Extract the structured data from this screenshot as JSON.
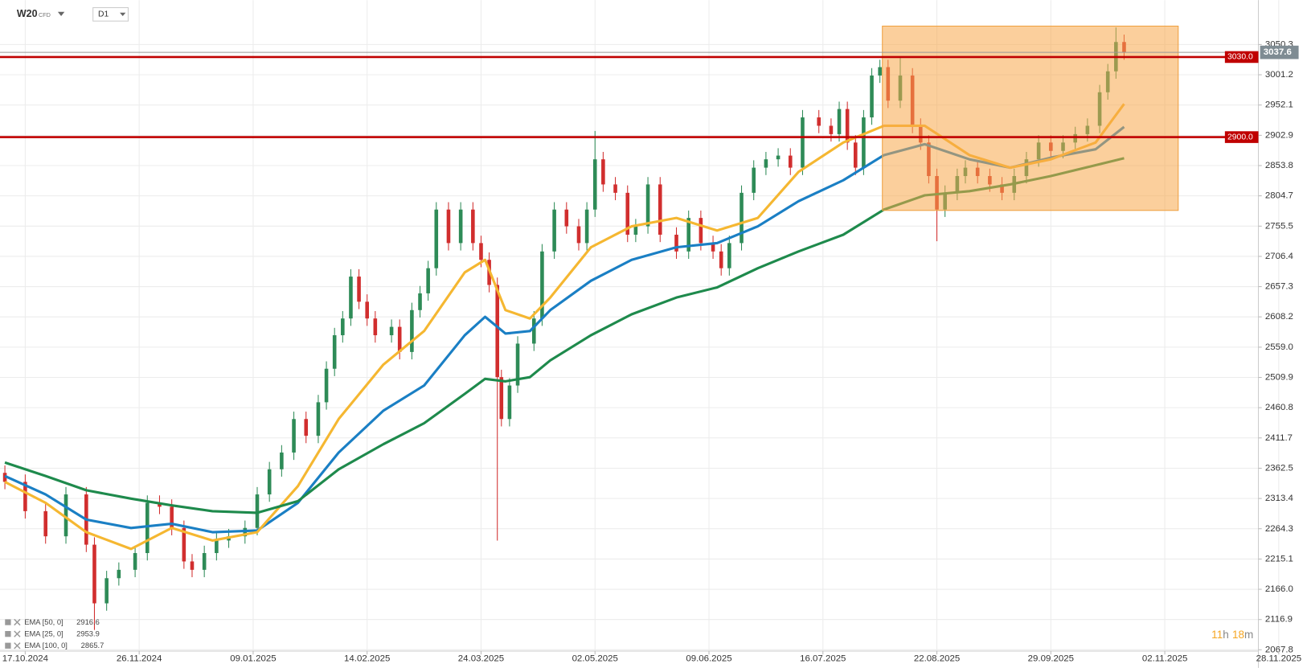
{
  "chart_data": {
    "type": "candlestick",
    "symbol": "W20",
    "instrument": "CFD",
    "interval": "D1",
    "countdown": [
      "11",
      "h",
      "18",
      "m"
    ],
    "up_color": "#2e8b57",
    "down_color": "#d12e2e",
    "grid": true,
    "xlim": [
      -6.2,
      303
    ],
    "ylim": [
      2065.6,
      3122.4
    ],
    "xticks": [
      {
        "value": 0,
        "label": "17.10.2024"
      },
      {
        "value": 28,
        "label": "26.11.2024"
      },
      {
        "value": 56,
        "label": "09.01.2025"
      },
      {
        "value": 84,
        "label": "14.02.2025"
      },
      {
        "value": 112,
        "label": "24.03.2025"
      },
      {
        "value": 140,
        "label": "02.05.2025"
      },
      {
        "value": 168,
        "label": "09.06.2025"
      },
      {
        "value": 196,
        "label": "16.07.2025"
      },
      {
        "value": 224,
        "label": "22.08.2025"
      },
      {
        "value": 252,
        "label": "29.09.2025"
      },
      {
        "value": 280,
        "label": "02.11.2025"
      },
      {
        "value": 308,
        "label": "28.11.2025"
      }
    ],
    "yticks": [
      3050.3,
      3001.2,
      2952.1,
      2902.9,
      2853.8,
      2804.7,
      2755.5,
      2706.4,
      2657.3,
      2608.2,
      {
        "value": 2559,
        "label": "2559.0"
      },
      2509.9,
      2460.8,
      2411.7,
      2362.5,
      2313.4,
      2264.3,
      2215.1,
      {
        "value": 2166,
        "label": "2166.0"
      },
      2116.9,
      2067.8
    ],
    "levels": [
      {
        "value": 3030,
        "label": "3030.0",
        "color": "#c00000"
      },
      {
        "value": 2900,
        "label": "2900.0",
        "color": "#c00000"
      }
    ],
    "zone": {
      "x": [
        210.6,
        283.3
      ],
      "y": [
        2781.0,
        3080.2
      ],
      "color": "#f7a84a"
    },
    "candles": {
      "x": [
        -5,
        0,
        5,
        10,
        15,
        17,
        20,
        23,
        27,
        30,
        33,
        36,
        39,
        41,
        44,
        47,
        50,
        54,
        57,
        60,
        63,
        66,
        69,
        72,
        74,
        76,
        78,
        80,
        82,
        84,
        86,
        90,
        92,
        95,
        97,
        99,
        101,
        104,
        107,
        110,
        112,
        114,
        116,
        117,
        119,
        121,
        125,
        127,
        130,
        133,
        136,
        138,
        140,
        142,
        145,
        148,
        150,
        153,
        156,
        160,
        163,
        166,
        169,
        171,
        173,
        176,
        179,
        182,
        185,
        188,
        191,
        195,
        198,
        200,
        202,
        204,
        206,
        208,
        210,
        212,
        215,
        218,
        220,
        222,
        224,
        226,
        229,
        231,
        234,
        237,
        240,
        243,
        246,
        249,
        252,
        255,
        258,
        261,
        264,
        266,
        268,
        270
      ],
      "open": [
        2355,
        2340.4,
        2292.8,
        2252,
        2320,
        2238.4,
        2143.2,
        2184,
        2197.6,
        2224.8,
        2306.4,
        2300,
        2265.6,
        2211.2,
        2197.6,
        2224.8,
        2245.2,
        2252,
        2265.6,
        2320,
        2360.8,
        2388,
        2442.4,
        2415.2,
        2469.6,
        2524,
        2578.4,
        2605.6,
        2673.6,
        2632.8,
        2605.6,
        2578.4,
        2592,
        2551.2,
        2619.2,
        2646.4,
        2687.2,
        2782.4,
        2728,
        2782.4,
        2728,
        2700.8,
        2660,
        2510.4,
        2442.4,
        2496.8,
        2564.8,
        2605.6,
        2714.4,
        2782.4,
        2755.2,
        2728,
        2782.4,
        2864,
        2823.2,
        2809.6,
        2741.6,
        2755.2,
        2823.2,
        2741.6,
        2714.4,
        2768.8,
        2728,
        2714.4,
        2687.2,
        2728,
        2809.6,
        2850.4,
        2864,
        2870,
        2850.4,
        2932,
        2918.4,
        2904.8,
        2945.6,
        2891.2,
        2850.4,
        2932,
        3000,
        3013.6,
        2959.2,
        3000,
        2918.4,
        2891.2,
        2836.8,
        2782.4,
        2809.6,
        2836.8,
        2850.4,
        2836.8,
        2823.2,
        2809.6,
        2836.8,
        2864,
        2891.2,
        2877.6,
        2891.2,
        2904.8,
        2918.4,
        2972.8,
        3006.8,
        3054.4
      ],
      "high": [
        2367,
        2352.4,
        2304.8,
        2332,
        2332,
        2250.4,
        2196,
        2209.6,
        2236.8,
        2318.4,
        2318.4,
        2312,
        2277.6,
        2223.2,
        2236.8,
        2257.2,
        2264,
        2277.6,
        2332,
        2372.8,
        2400,
        2454.4,
        2454.4,
        2481.6,
        2536,
        2590.4,
        2617.6,
        2685.6,
        2685.6,
        2644.8,
        2617.6,
        2604,
        2604,
        2631.2,
        2658.4,
        2699.2,
        2794.4,
        2794.4,
        2794.4,
        2794.4,
        2740,
        2712.8,
        2672,
        2522.4,
        2508.8,
        2576.8,
        2617.6,
        2726.4,
        2794.4,
        2794.4,
        2767.2,
        2794.4,
        2910,
        2876,
        2835.2,
        2821.6,
        2767.2,
        2835.2,
        2835.2,
        2753.6,
        2780.8,
        2780.8,
        2740,
        2726.4,
        2740,
        2821.6,
        2862.4,
        2876,
        2882,
        2882,
        2944,
        2944,
        2930.4,
        2957.6,
        2957.6,
        2903.2,
        2944,
        3012,
        3025.6,
        3025.6,
        3030,
        3012,
        2930.4,
        2903.2,
        2848.8,
        2821.6,
        2848.8,
        2862.4,
        2862.4,
        2848.8,
        2835.2,
        2848.8,
        2876,
        2903.2,
        2903.2,
        2903.2,
        2916.8,
        2930.4,
        2984.8,
        3018.8,
        3078,
        3066.4
      ],
      "low": [
        2328.4,
        2280.8,
        2240,
        2240,
        2226.4,
        2100,
        2131.2,
        2172,
        2185.6,
        2212.8,
        2288,
        2253.6,
        2199.2,
        2185.6,
        2185.6,
        2212.8,
        2233.2,
        2240,
        2253.6,
        2308,
        2348.8,
        2376,
        2403.2,
        2403.2,
        2457.6,
        2512,
        2566.4,
        2593.6,
        2620.8,
        2593.6,
        2566.4,
        2566.4,
        2539.2,
        2539.2,
        2607.2,
        2634.4,
        2675.2,
        2716,
        2716,
        2716,
        2688.8,
        2648,
        2245,
        2430.4,
        2430.4,
        2484.8,
        2552.8,
        2593.6,
        2702.4,
        2743.2,
        2716,
        2716,
        2770.4,
        2811.2,
        2797.6,
        2729.6,
        2729.6,
        2743.2,
        2729.6,
        2702.4,
        2702.4,
        2716,
        2702.4,
        2675.2,
        2675.2,
        2716,
        2797.6,
        2838.4,
        2852,
        2838.4,
        2838.4,
        2906.4,
        2892.8,
        2892.8,
        2879.2,
        2838.4,
        2838.4,
        2920,
        2988,
        2947.2,
        2947.2,
        2906.4,
        2879.2,
        2824.8,
        2731,
        2770.4,
        2797.6,
        2824.8,
        2824.8,
        2811.2,
        2797.6,
        2797.6,
        2824.8,
        2852,
        2865.6,
        2865.6,
        2879.2,
        2892.8,
        2906.4,
        2960.8,
        2994.8,
        3025.6
      ],
      "close": [
        2340.4,
        2292.8,
        2252,
        2320,
        2238.4,
        2143.2,
        2184,
        2197.6,
        2224.8,
        2306.4,
        2300,
        2265.6,
        2211.2,
        2197.6,
        2224.8,
        2245.2,
        2252,
        2265.6,
        2320,
        2360.8,
        2388,
        2442.4,
        2415.2,
        2469.6,
        2524,
        2578.4,
        2605.6,
        2673.6,
        2632.8,
        2605.6,
        2578.4,
        2592,
        2551.2,
        2619.2,
        2646.4,
        2687.2,
        2782.4,
        2728,
        2782.4,
        2728,
        2700.8,
        2660,
        2510.4,
        2442.4,
        2496.8,
        2564.8,
        2605.6,
        2714.4,
        2782.4,
        2755.2,
        2728,
        2782.4,
        2864,
        2823.2,
        2809.6,
        2741.6,
        2755.2,
        2823.2,
        2741.6,
        2714.4,
        2768.8,
        2728,
        2714.4,
        2687.2,
        2728,
        2809.6,
        2850.4,
        2864,
        2870,
        2850.4,
        2932,
        2918.4,
        2904.8,
        2945.6,
        2891.2,
        2850.4,
        2932,
        3000,
        3013.6,
        2959.2,
        3000,
        2918.4,
        2891.2,
        2836.8,
        2782.4,
        2809.6,
        2836.8,
        2850.4,
        2836.8,
        2823.2,
        2809.6,
        2836.8,
        2864,
        2891.2,
        2877.6,
        2891.2,
        2904.8,
        2918.4,
        2972.8,
        3006.8,
        3054.4,
        3037.6
      ]
    },
    "x": [
      -5,
      5,
      15,
      26,
      36,
      46,
      57,
      67,
      77,
      88,
      98,
      108,
      113,
      118,
      124,
      129,
      139,
      149,
      160,
      170,
      180,
      190,
      201,
      211,
      221,
      232,
      242,
      252,
      263,
      270
    ],
    "series": [
      {
        "name": "EMA [50, 0]",
        "color": "#1a7fc4",
        "values": [
          2349.9,
          2320,
          2279.2,
          2265.6,
          2272.4,
          2258.8,
          2261.5,
          2306.4,
          2388,
          2456,
          2496.8,
          2578.4,
          2608.3,
          2581.1,
          2585.2,
          2619.2,
          2666.8,
          2700.8,
          2721.2,
          2728,
          2755.2,
          2796,
          2830,
          2870.8,
          2888.5,
          2864,
          2850.4,
          2866.7,
          2880.3,
          2916.6
        ]
      },
      {
        "name": "EMA [25, 0]",
        "color": "#f5b731",
        "values": [
          2340.4,
          2306.4,
          2258.8,
          2231.6,
          2265.6,
          2245.2,
          2258.8,
          2333.6,
          2442.4,
          2530.8,
          2585.2,
          2680.4,
          2700.8,
          2619.2,
          2605.6,
          2639.6,
          2721.2,
          2755.2,
          2768.8,
          2748.4,
          2768.8,
          2843.6,
          2891.2,
          2918.4,
          2918.4,
          2870.8,
          2850.4,
          2864,
          2891.2,
          2953.9
        ]
      },
      {
        "name": "EMA [100, 0]",
        "color": "#1e8a4c",
        "values": [
          2371.7,
          2349.9,
          2326.8,
          2313.2,
          2302.3,
          2292.8,
          2290.1,
          2309.1,
          2360.8,
          2401.6,
          2435.6,
          2483.2,
          2507.7,
          2503.6,
          2510.4,
          2537.6,
          2578.4,
          2612.4,
          2639.6,
          2656,
          2687.2,
          2714.4,
          2741.6,
          2782.4,
          2805.5,
          2812.3,
          2823.2,
          2836.8,
          2854.5,
          2865.7
        ]
      }
    ]
  }
}
